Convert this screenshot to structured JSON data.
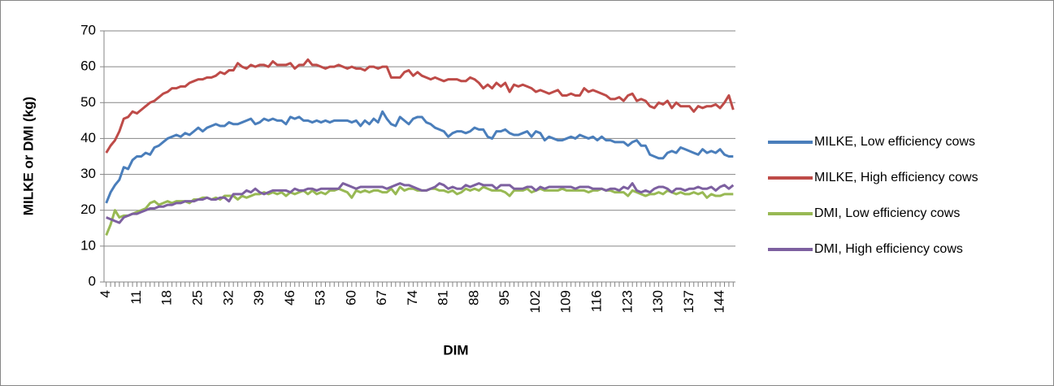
{
  "chart_data": {
    "type": "line",
    "xlabel": "DIM",
    "ylabel": "MILKE or DMI (kg)",
    "x": [
      4,
      5,
      6,
      7,
      8,
      9,
      10,
      11,
      12,
      13,
      14,
      15,
      16,
      17,
      18,
      19,
      20,
      21,
      22,
      23,
      24,
      25,
      26,
      27,
      28,
      29,
      30,
      31,
      32,
      33,
      34,
      35,
      36,
      37,
      38,
      39,
      40,
      41,
      42,
      43,
      44,
      45,
      46,
      47,
      48,
      49,
      50,
      51,
      52,
      53,
      54,
      55,
      56,
      57,
      58,
      59,
      60,
      61,
      62,
      63,
      64,
      65,
      66,
      67,
      68,
      69,
      70,
      71,
      72,
      73,
      74,
      75,
      76,
      77,
      78,
      79,
      80,
      81,
      82,
      83,
      84,
      85,
      86,
      87,
      88,
      89,
      90,
      91,
      92,
      93,
      94,
      95,
      96,
      97,
      98,
      99,
      100,
      101,
      102,
      103,
      104,
      105,
      106,
      107,
      108,
      109,
      110,
      111,
      112,
      113,
      114,
      115,
      116,
      117,
      118,
      119,
      120,
      121,
      122,
      123,
      124,
      125,
      126,
      127,
      128,
      129,
      130,
      131,
      132,
      133,
      134,
      135,
      136,
      137,
      138,
      139,
      140,
      141,
      142,
      143,
      144,
      145,
      146,
      147
    ],
    "xlim": [
      3.5,
      147.5
    ],
    "xticks": [
      4,
      11,
      18,
      25,
      32,
      39,
      46,
      53,
      60,
      67,
      74,
      81,
      88,
      95,
      102,
      109,
      116,
      123,
      130,
      137,
      144
    ],
    "ylim": [
      0,
      70
    ],
    "yticks": [
      0,
      10,
      20,
      30,
      40,
      50,
      60,
      70
    ],
    "grid": true,
    "legend": "right",
    "series": [
      {
        "name": "MILKE, Low efficiency cows",
        "color": "#4a7ebb",
        "values": [
          22,
          25,
          27,
          28.5,
          32,
          31.5,
          34,
          35,
          35,
          36,
          35.5,
          37.5,
          38,
          39,
          40,
          40.5,
          41,
          40.5,
          41.5,
          41,
          42,
          43,
          42,
          43,
          43.5,
          44,
          43.5,
          43.5,
          44.5,
          44,
          44,
          44.5,
          45,
          45.5,
          44,
          44.5,
          45.5,
          45,
          45.5,
          45,
          45,
          44,
          46,
          45.5,
          46,
          45,
          45,
          44.5,
          45,
          44.5,
          45,
          44.5,
          45,
          45,
          45,
          45,
          44.5,
          45,
          43.5,
          45,
          44,
          45.5,
          44.5,
          47.5,
          45.5,
          44,
          43.5,
          46,
          45,
          44,
          45.5,
          46,
          46,
          44.5,
          44,
          43,
          42.5,
          42,
          40.5,
          41.5,
          42,
          42,
          41.5,
          42,
          43,
          42.5,
          42.5,
          40.5,
          40,
          42,
          42,
          42.5,
          41.5,
          41,
          41,
          41.5,
          42,
          40.5,
          42,
          41.5,
          39.5,
          40.5,
          40,
          39.5,
          39.5,
          40,
          40.5,
          40,
          41,
          40.5,
          40,
          40.5,
          39.5,
          40.5,
          39.5,
          39.5,
          39,
          39,
          39,
          38,
          39,
          39.5,
          38,
          38,
          35.5,
          35,
          34.5,
          34.5,
          36,
          36.5,
          36,
          37.5,
          37,
          36.5,
          36,
          35.5,
          37,
          36,
          36.5,
          36,
          37,
          35.5,
          35,
          35
        ]
      },
      {
        "name": "MILKE, High efficiency cows",
        "color": "#be4b48",
        "values": [
          36,
          38,
          39.5,
          42,
          45.5,
          46,
          47.5,
          47,
          48,
          49,
          50,
          50.5,
          51.5,
          52.5,
          53,
          54,
          54,
          54.5,
          54.5,
          55.5,
          56,
          56.5,
          56.5,
          57,
          57,
          57.5,
          58.5,
          58,
          59,
          59,
          61,
          60,
          59.5,
          60.5,
          60,
          60.5,
          60.5,
          60,
          61.5,
          60.5,
          60.5,
          60.5,
          61,
          59.5,
          60.5,
          60.5,
          62,
          60.5,
          60.5,
          60,
          59.5,
          60,
          60,
          60.5,
          60,
          59.5,
          60,
          59.5,
          59.5,
          59,
          60,
          60,
          59.5,
          60,
          60,
          57,
          57,
          57,
          58.5,
          59,
          57.5,
          58.5,
          57.5,
          57,
          56.5,
          57,
          56.5,
          56,
          56.5,
          56.5,
          56.5,
          56,
          56,
          57,
          56.5,
          55.5,
          54,
          55,
          54,
          55.5,
          54.5,
          55.5,
          53,
          55,
          54.5,
          55,
          54.5,
          54,
          53,
          53.5,
          53,
          52.5,
          53,
          53.5,
          52,
          52,
          52.5,
          52,
          52,
          54,
          53,
          53.5,
          53,
          52.5,
          52,
          51,
          51,
          51.5,
          50.5,
          52,
          52.5,
          50.5,
          51,
          50.5,
          49,
          48.5,
          50,
          49.5,
          50.5,
          48.5,
          50,
          49,
          49,
          49,
          47.5,
          49,
          48.5,
          49,
          49,
          49.5,
          48.5,
          50,
          52,
          48
        ]
      },
      {
        "name": "DMI, Low efficiency cows",
        "color": "#98b954",
        "values": [
          13,
          16,
          20,
          18,
          18.5,
          18.5,
          19,
          19.5,
          20,
          20.5,
          22,
          22.5,
          21.5,
          22,
          22.5,
          22,
          22.5,
          22.5,
          22.5,
          22,
          23,
          23,
          23.5,
          23.5,
          23,
          23.5,
          23,
          24,
          24,
          24,
          23,
          24,
          23.5,
          24,
          24.5,
          24.5,
          25,
          24.5,
          25,
          24.5,
          25,
          24,
          25,
          24.5,
          25,
          25.5,
          24.5,
          25.5,
          24.5,
          25,
          24.5,
          25.5,
          25.5,
          26,
          25.5,
          25,
          23.5,
          25.5,
          25,
          25.5,
          25,
          25.5,
          25.5,
          25,
          25,
          26,
          24.5,
          26.5,
          25.5,
          26,
          26,
          25.5,
          25.5,
          25.5,
          26,
          26,
          25.5,
          25.5,
          25,
          25.5,
          24.5,
          25,
          26,
          25.5,
          26,
          25.5,
          26.5,
          26,
          25.5,
          25.5,
          25.5,
          25,
          24,
          25.5,
          25.5,
          25.5,
          26,
          25,
          25.5,
          26,
          25.5,
          25.5,
          25.5,
          25.5,
          26,
          25.5,
          25.5,
          25.5,
          25.5,
          25.5,
          25,
          25.5,
          25.5,
          26,
          25.5,
          25.5,
          25,
          25,
          25,
          24,
          25.5,
          25,
          24.5,
          24,
          24.5,
          24.5,
          25,
          24.5,
          25.5,
          25,
          24.5,
          25,
          24.5,
          24.5,
          25,
          24.5,
          25,
          23.5,
          24.5,
          24,
          24,
          24.5,
          24.5,
          24.5
        ]
      },
      {
        "name": "DMI, High efficiency cows",
        "color": "#7d60a0",
        "values": [
          18,
          17.5,
          17,
          16.5,
          18,
          18.5,
          19,
          19,
          19.5,
          20,
          20.5,
          20.5,
          21,
          21,
          21.5,
          21.5,
          22,
          22,
          22.5,
          22.5,
          22.5,
          23,
          23,
          23.5,
          23,
          23,
          23.5,
          23.5,
          22.5,
          24.5,
          24.5,
          24.5,
          25.5,
          25,
          26,
          25,
          24.5,
          25,
          25.5,
          25.5,
          25.5,
          25.5,
          25,
          26,
          25.5,
          25.5,
          26,
          26,
          25.5,
          26,
          26,
          26,
          26,
          26,
          27.5,
          27,
          26.5,
          26,
          26.5,
          26.5,
          26.5,
          26.5,
          26.5,
          26.5,
          26,
          26.5,
          27,
          27.5,
          27,
          27,
          26.5,
          26,
          25.5,
          25.5,
          26,
          26.5,
          27.5,
          27,
          26,
          26.5,
          26,
          26,
          27,
          26.5,
          27,
          27.5,
          27,
          27,
          27,
          26,
          27,
          27,
          27,
          26,
          26,
          26,
          26.5,
          26.5,
          25.5,
          26.5,
          26,
          26.5,
          26.5,
          26.5,
          26.5,
          26.5,
          26.5,
          26,
          26.5,
          26.5,
          26.5,
          26,
          26,
          26,
          25.5,
          26,
          26,
          25.5,
          26.5,
          26,
          27.5,
          25.5,
          25,
          25.5,
          25,
          26,
          26.5,
          26.5,
          26,
          25,
          26,
          26,
          25.5,
          26,
          26,
          26.5,
          26,
          26,
          26.5,
          25.5,
          26.5,
          27,
          26,
          27
        ]
      }
    ]
  }
}
